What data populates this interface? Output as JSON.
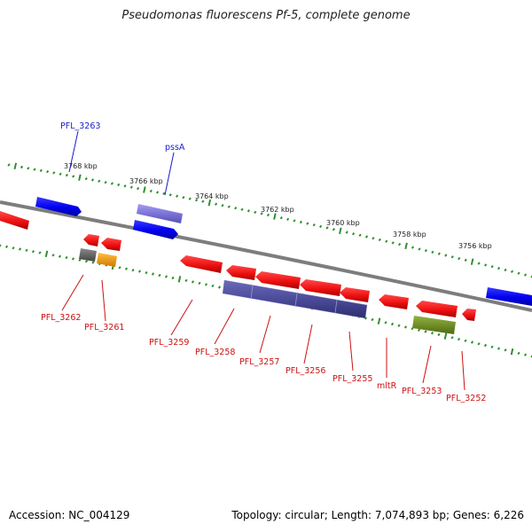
{
  "title": "Pseudomonas fluorescens Pf-5, complete genome",
  "accession": "Accession: NC_004129",
  "summary": "Topology: circular; Length: 7,074,893 bp; Genes: 6,226",
  "colors": {
    "backbone": "#808080",
    "tick": "#2f8f2f",
    "forward_cds": "#0000ee",
    "forward_label": "#1a1acc",
    "reverse_cds": "#ee1111",
    "reverse_label": "#cc1111",
    "feature_purple": "#4b4b9a",
    "feature_lavender": "#7b74d8",
    "feature_gray": "#666666",
    "feature_orange": "#f59a10",
    "feature_olive": "#6f8f22"
  },
  "kbp_labels": [
    "3768 kbp",
    "3766 kbp",
    "3764 kbp",
    "3762 kbp",
    "3760 kbp",
    "3758 kbp",
    "3756 kbp"
  ],
  "forward_labels": [
    "PFL_3263",
    "pssA"
  ],
  "reverse_labels": [
    "PFL_3262",
    "PFL_3261",
    "PFL_3259",
    "PFL_3258",
    "PFL_3257",
    "PFL_3256",
    "PFL_3255",
    "mltR",
    "PFL_3253",
    "PFL_3252"
  ]
}
